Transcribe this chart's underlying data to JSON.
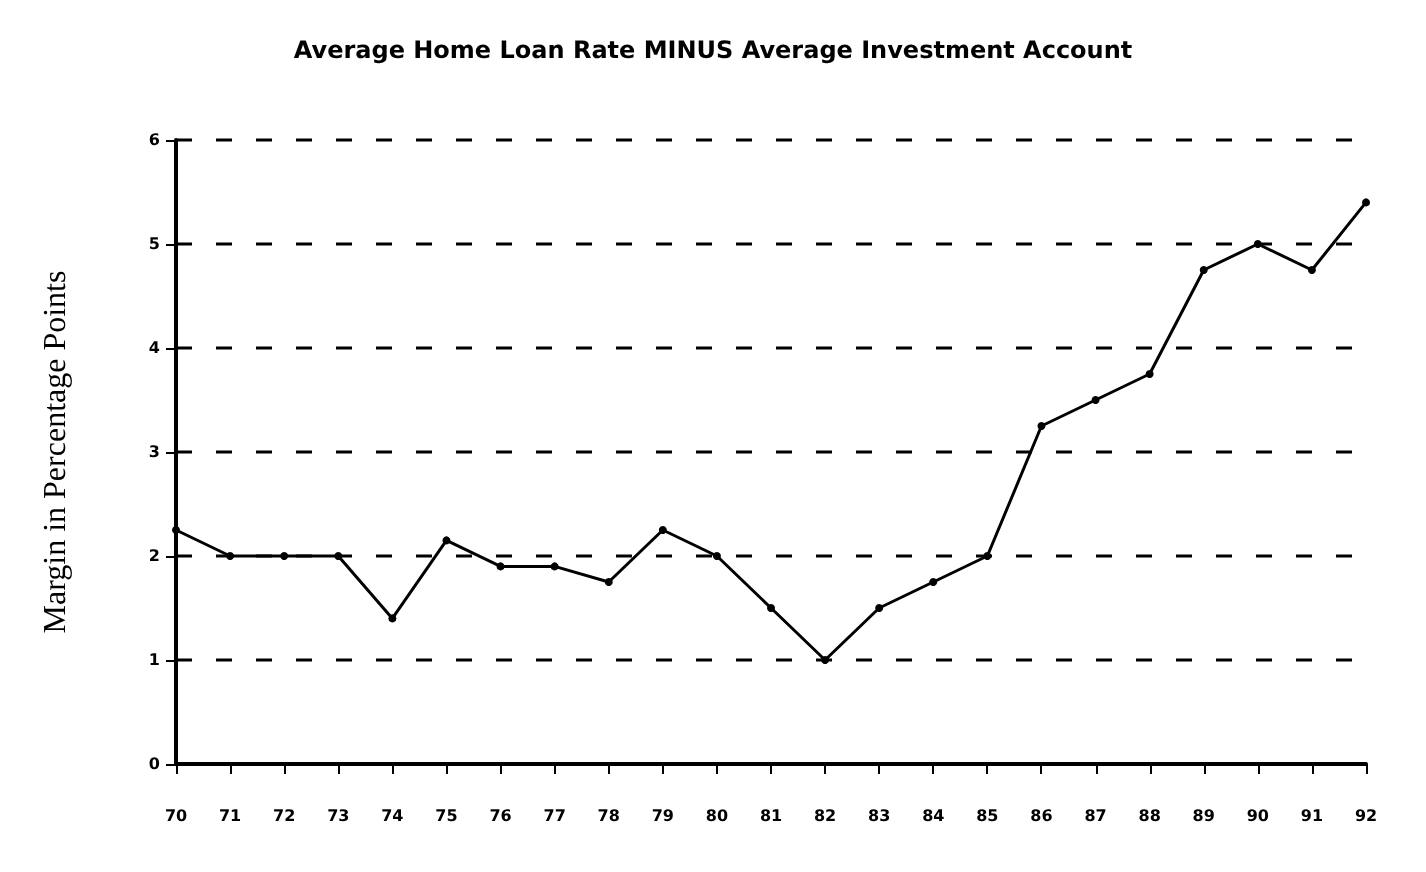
{
  "chart_data": {
    "type": "line",
    "title": "Average Home Loan Rate MINUS Average Investment Account",
    "ylabel": "Margin in Percentage Points",
    "categories": [
      "70",
      "71",
      "72",
      "73",
      "74",
      "75",
      "76",
      "77",
      "78",
      "79",
      "80",
      "81",
      "82",
      "83",
      "84",
      "85",
      "86",
      "87",
      "88",
      "89",
      "90",
      "91",
      "92"
    ],
    "series": [
      {
        "color": "#000000",
        "values": [
          2.25,
          2.0,
          2.0,
          2.0,
          1.4,
          2.15,
          1.9,
          1.9,
          1.75,
          2.25,
          2.0,
          1.5,
          1.0,
          1.5,
          1.75,
          2.0,
          3.25,
          3.5,
          3.75,
          4.75,
          5.0,
          4.75,
          5.4
        ]
      }
    ],
    "ylim": [
      0,
      6
    ],
    "yticks": [
      0,
      1,
      2,
      3,
      4,
      5,
      6
    ],
    "grid": "y",
    "marker": "circle",
    "line_style": "solid"
  }
}
